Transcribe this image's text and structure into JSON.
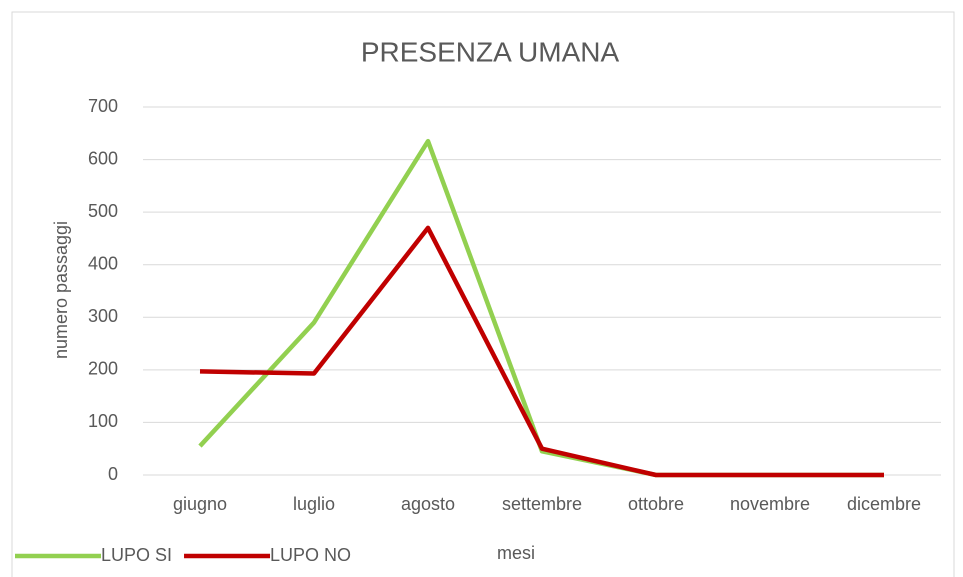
{
  "chart_data": {
    "type": "line",
    "title": "PRESENZA UMANA",
    "x_label": "mesi",
    "y_label": "numero passaggi",
    "categories": [
      "giugno",
      "luglio",
      "agosto",
      "settembre",
      "ottobre",
      "novembre",
      "dicembre"
    ],
    "series": [
      {
        "name": "LUPO SI",
        "color": "#92d050",
        "values": [
          55,
          290,
          635,
          45,
          0,
          0,
          0
        ]
      },
      {
        "name": "LUPO NO",
        "color": "#c00000",
        "values": [
          197,
          193,
          470,
          50,
          0,
          0,
          0
        ]
      }
    ],
    "ylim": [
      0,
      700
    ],
    "yticks": [
      0,
      100,
      200,
      300,
      400,
      500,
      600,
      700
    ],
    "grid": true
  }
}
